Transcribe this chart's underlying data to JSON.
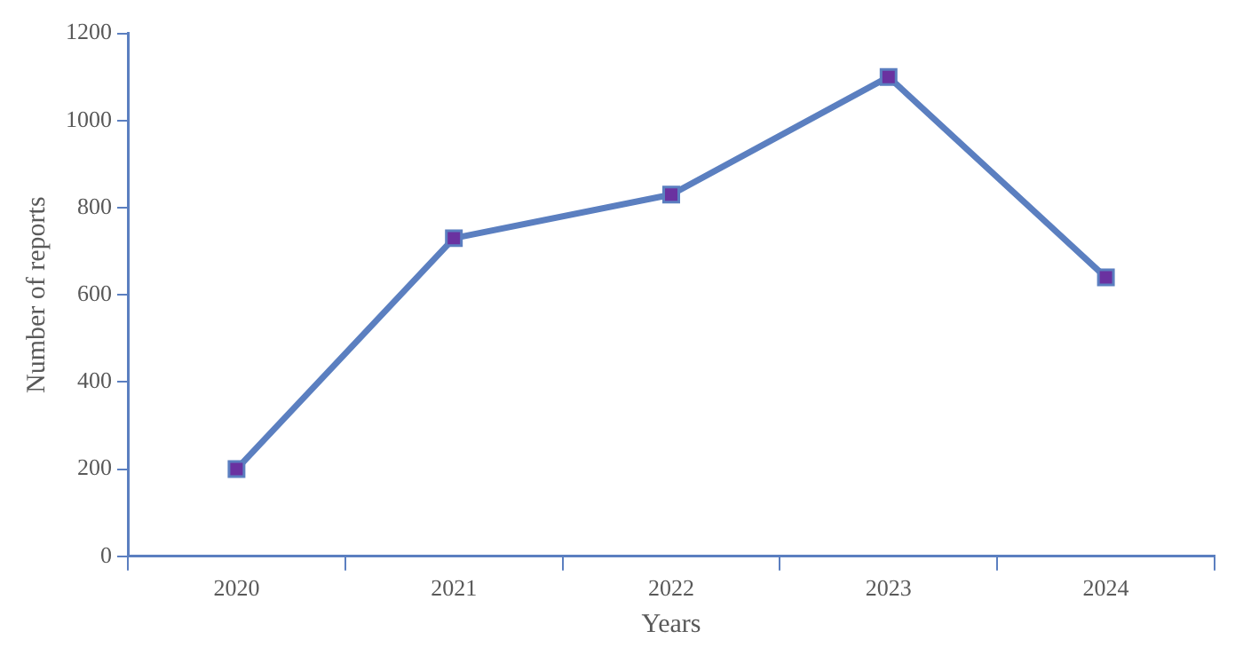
{
  "chart_data": {
    "type": "line",
    "xlabel": "Years",
    "ylabel": "Number of reports",
    "categories": [
      "2020",
      "2021",
      "2022",
      "2023",
      "2024"
    ],
    "series": [
      {
        "color": "#5b7fc0",
        "colors": [
          "#6a32a0",
          "#6a32a0",
          "#6a32a0",
          "#6a32a0",
          "#6a32a0"
        ],
        "values": [
          200,
          730,
          830,
          1100,
          640
        ]
      }
    ],
    "ylim": [
      0,
      1200
    ],
    "yticks": [
      0,
      200,
      400,
      600,
      800,
      1000,
      1200
    ],
    "grid": false,
    "legend": false,
    "marker": "square",
    "line_style": "solid"
  }
}
